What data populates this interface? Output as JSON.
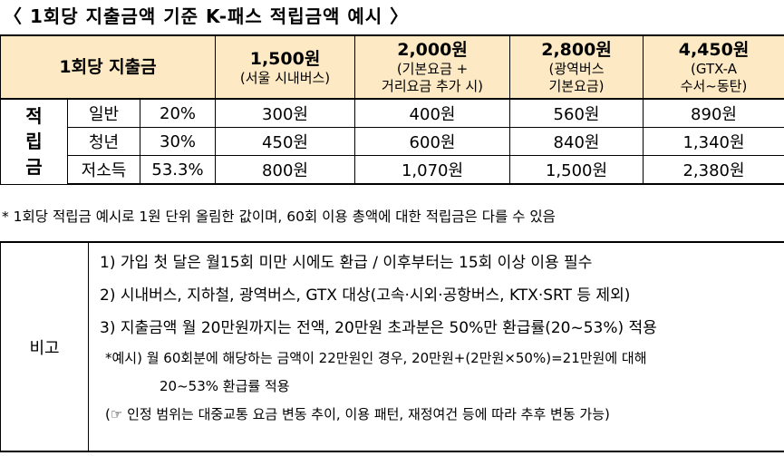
{
  "title": "〈 1회당 지출금액 기준 K-패스 적립금액 예시 〉",
  "table": {
    "header_label": "1회당 지출금",
    "columns": [
      {
        "amount": "1,500원",
        "desc1": "(서울 시내버스)",
        "desc2": ""
      },
      {
        "amount": "2,000원",
        "desc1": "(기본요금 +",
        "desc2": "거리요금 추가 시)"
      },
      {
        "amount": "2,800원",
        "desc1": "(광역버스",
        "desc2": "기본요금)"
      },
      {
        "amount": "4,450원",
        "desc1": "(GTX-A",
        "desc2": "수서~동탄)"
      }
    ],
    "side_label": [
      "적",
      "립",
      "금"
    ],
    "rows": [
      {
        "type": "일반",
        "rate": "20%",
        "values": [
          "300원",
          "400원",
          "560원",
          "890원"
        ]
      },
      {
        "type": "청년",
        "rate": "30%",
        "values": [
          "450원",
          "600원",
          "840원",
          "1,340원"
        ]
      },
      {
        "type": "저소득",
        "rate": "53.3%",
        "values": [
          "800원",
          "1,070원",
          "1,500원",
          "2,380원"
        ]
      }
    ]
  },
  "footnote": "* 1회당 적립금 예시로 1원 단위 올림한 값이며, 60회 이용 총액에 대한 적립금은 다를 수 있음",
  "notes": {
    "label": "비고",
    "lines": [
      "1) 가입 첫 달은 월15회 미만 시에도 환급 / 이후부터는 15회 이상 이용 필수",
      "2) 시내버스, 지하철, 광역버스, GTX 대상(고속·시외·공항버스, KTX·SRT 등 제외)",
      "3) 지출금액 월 20만원까지는 전액, 20만원 초과분은 50%만 환급률(20~53%) 적용",
      "*예시) 월 60회분에 해당하는 금액이 22만원인 경우, 20만원+(2만원×50%)=21만원에 대해",
      "20~53% 환급률 적용",
      "(☞ 인정 범위는 대중교통 요금 변동 추이, 이용 패턴, 재정여건 등에 따라 추후 변동 가능)"
    ]
  }
}
